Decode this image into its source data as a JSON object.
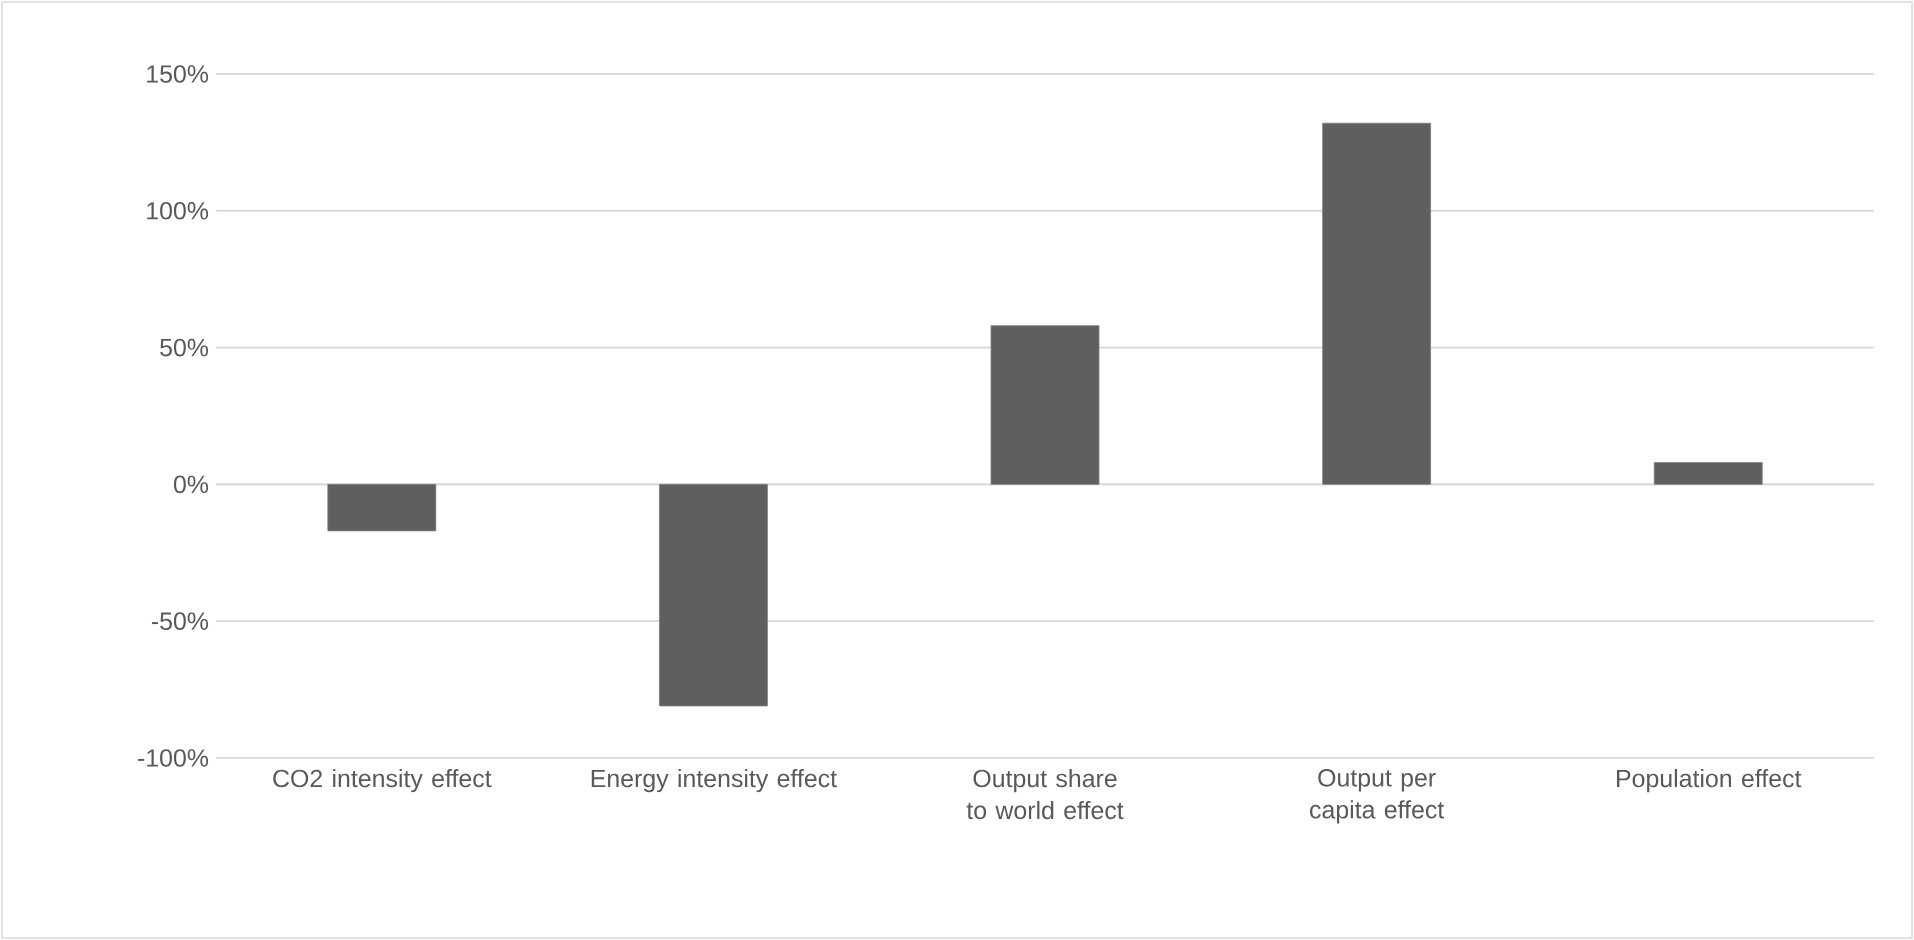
{
  "chart_data": {
    "type": "bar",
    "categories": [
      "CO2 intensity effect",
      "Energy intensity effect",
      "Output share to world effect",
      "Output per capita effect",
      "Population effect"
    ],
    "values": [
      -17,
      -81,
      58,
      132,
      8
    ],
    "color": "#5f5f5f",
    "ylim": [
      -100,
      150
    ],
    "yticks": [
      {
        "value": -100,
        "label": "-100%"
      },
      {
        "value": -50,
        "label": "-50%"
      },
      {
        "value": 0,
        "label": "0%"
      },
      {
        "value": 50,
        "label": "50%"
      },
      {
        "value": 100,
        "label": "100%"
      },
      {
        "value": 150,
        "label": "150%"
      }
    ],
    "grid": "y"
  }
}
